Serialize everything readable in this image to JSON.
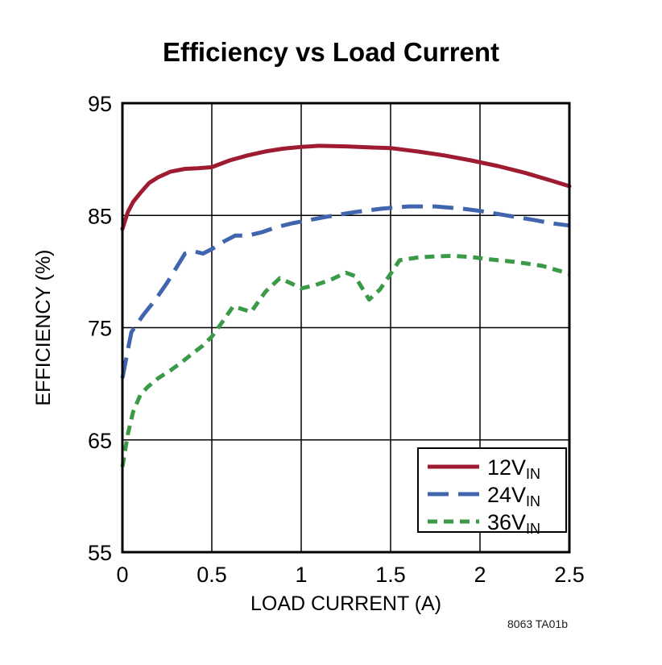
{
  "caption": "8063 TA01b",
  "chart_data": {
    "type": "line",
    "title": "Efficiency vs Load Current",
    "xlabel": "LOAD CURRENT (A)",
    "ylabel": "EFFICIENCY (%)",
    "xlim": [
      0,
      2.5
    ],
    "ylim": [
      55,
      95
    ],
    "xticks": [
      0,
      0.5,
      1,
      1.5,
      2,
      2.5
    ],
    "xtick_labels": [
      "0",
      "0.5",
      "1",
      "1.5",
      "2",
      "2.5"
    ],
    "yticks": [
      55,
      65,
      75,
      85,
      95
    ],
    "ytick_labels": [
      "55",
      "65",
      "75",
      "85",
      "95"
    ],
    "grid": true,
    "legend_position": "lower right",
    "series": [
      {
        "name": "12VIN",
        "label": "12V",
        "label_sub": "IN",
        "color": "#9e1b32",
        "dash": "solid",
        "points": [
          [
            0,
            83.8
          ],
          [
            0.03,
            85.3
          ],
          [
            0.06,
            86.2
          ],
          [
            0.1,
            87.0
          ],
          [
            0.15,
            87.9
          ],
          [
            0.2,
            88.4
          ],
          [
            0.27,
            88.9
          ],
          [
            0.35,
            89.15
          ],
          [
            0.42,
            89.2
          ],
          [
            0.5,
            89.3
          ],
          [
            0.6,
            89.9
          ],
          [
            0.7,
            90.35
          ],
          [
            0.8,
            90.7
          ],
          [
            0.9,
            90.95
          ],
          [
            1.0,
            91.1
          ],
          [
            1.1,
            91.2
          ],
          [
            1.25,
            91.15
          ],
          [
            1.4,
            91.05
          ],
          [
            1.5,
            91.0
          ],
          [
            1.65,
            90.7
          ],
          [
            1.8,
            90.35
          ],
          [
            1.95,
            89.9
          ],
          [
            2.1,
            89.4
          ],
          [
            2.25,
            88.8
          ],
          [
            2.4,
            88.1
          ],
          [
            2.5,
            87.6
          ]
        ]
      },
      {
        "name": "24VIN",
        "label": "24V",
        "label_sub": "IN",
        "color": "#4065ae",
        "dash": "long-dash",
        "points": [
          [
            0,
            70.5
          ],
          [
            0.03,
            73.0
          ],
          [
            0.05,
            74.6
          ],
          [
            0.08,
            75.3
          ],
          [
            0.12,
            76.2
          ],
          [
            0.18,
            77.4
          ],
          [
            0.25,
            79.0
          ],
          [
            0.3,
            80.3
          ],
          [
            0.35,
            81.6
          ],
          [
            0.4,
            81.8
          ],
          [
            0.45,
            81.6
          ],
          [
            0.5,
            82.0
          ],
          [
            0.57,
            82.7
          ],
          [
            0.63,
            83.2
          ],
          [
            0.7,
            83.2
          ],
          [
            0.78,
            83.5
          ],
          [
            0.85,
            83.9
          ],
          [
            0.95,
            84.3
          ],
          [
            1.05,
            84.6
          ],
          [
            1.15,
            84.9
          ],
          [
            1.3,
            85.3
          ],
          [
            1.45,
            85.6
          ],
          [
            1.6,
            85.8
          ],
          [
            1.75,
            85.8
          ],
          [
            1.9,
            85.6
          ],
          [
            2.0,
            85.4
          ],
          [
            2.15,
            85.0
          ],
          [
            2.3,
            84.6
          ],
          [
            2.4,
            84.3
          ],
          [
            2.5,
            84.1
          ]
        ]
      },
      {
        "name": "36VIN",
        "label": "36V",
        "label_sub": "IN",
        "color": "#3a9a48",
        "dash": "short-dash",
        "points": [
          [
            0,
            62.6
          ],
          [
            0.03,
            65.5
          ],
          [
            0.06,
            67.5
          ],
          [
            0.1,
            69.0
          ],
          [
            0.14,
            69.7
          ],
          [
            0.2,
            70.5
          ],
          [
            0.27,
            71.2
          ],
          [
            0.33,
            71.9
          ],
          [
            0.4,
            72.8
          ],
          [
            0.45,
            73.4
          ],
          [
            0.5,
            74.2
          ],
          [
            0.55,
            75.3
          ],
          [
            0.62,
            76.9
          ],
          [
            0.66,
            76.7
          ],
          [
            0.72,
            76.4
          ],
          [
            0.8,
            78.2
          ],
          [
            0.88,
            79.4
          ],
          [
            0.95,
            78.9
          ],
          [
            1.0,
            78.5
          ],
          [
            1.08,
            78.8
          ],
          [
            1.17,
            79.3
          ],
          [
            1.25,
            79.9
          ],
          [
            1.3,
            79.6
          ],
          [
            1.38,
            77.5
          ],
          [
            1.44,
            78.4
          ],
          [
            1.5,
            79.8
          ],
          [
            1.55,
            81.0
          ],
          [
            1.65,
            81.25
          ],
          [
            1.75,
            81.35
          ],
          [
            1.85,
            81.4
          ],
          [
            1.95,
            81.3
          ],
          [
            2.05,
            81.1
          ],
          [
            2.2,
            80.85
          ],
          [
            2.35,
            80.5
          ],
          [
            2.5,
            79.8
          ]
        ]
      }
    ]
  }
}
